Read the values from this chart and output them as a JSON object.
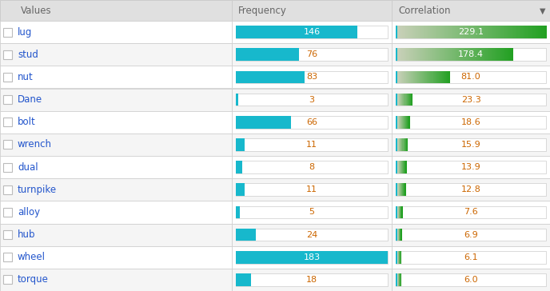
{
  "rows": [
    {
      "label": "lug",
      "freq": 146,
      "corr": 229.1
    },
    {
      "label": "stud",
      "freq": 76,
      "corr": 178.4
    },
    {
      "label": "nut",
      "freq": 83,
      "corr": 81.0
    },
    {
      "label": "Dane",
      "freq": 3,
      "corr": 23.3
    },
    {
      "label": "bolt",
      "freq": 66,
      "corr": 18.6
    },
    {
      "label": "wrench",
      "freq": 11,
      "corr": 15.9
    },
    {
      "label": "dual",
      "freq": 8,
      "corr": 13.9
    },
    {
      "label": "turnpike",
      "freq": 11,
      "corr": 12.8
    },
    {
      "label": "alloy",
      "freq": 5,
      "corr": 7.6
    },
    {
      "label": "hub",
      "freq": 24,
      "corr": 6.9
    },
    {
      "label": "wheel",
      "freq": 183,
      "corr": 6.1
    },
    {
      "label": "torque",
      "freq": 18,
      "corr": 6.0
    }
  ],
  "freq_max": 183,
  "corr_max": 229.1,
  "header_bg": "#e0e0e0",
  "row_bg_even": "#ffffff",
  "row_bg_odd": "#f5f5f5",
  "freq_bar_color": "#17b8cc",
  "label_color": "#2255cc",
  "header_color": "#666666",
  "number_color": "#cc6600",
  "grid_color": "#cccccc",
  "checkbox_color": "#bbbbbb",
  "corr_teal_border": "#17b8cc",
  "title": "Values",
  "col2_title": "Frequency",
  "col3_title": "Correlation"
}
